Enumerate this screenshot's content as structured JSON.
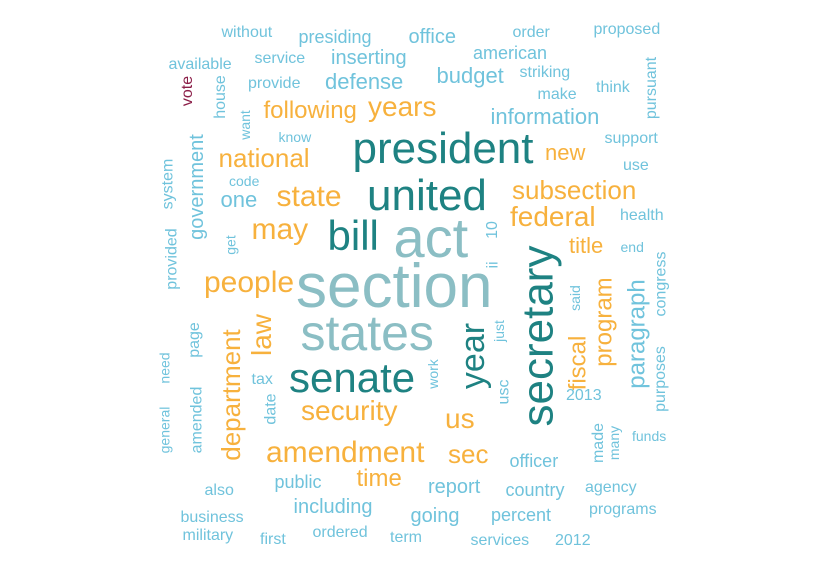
{
  "colors": {
    "light_blue": "#70C3DC",
    "gold": "#F7B13D",
    "teal_light": "#8BBEC4",
    "teal_dark": "#1E8282",
    "maroon": "#8B1E48"
  },
  "words": [
    {
      "text": "section",
      "color": "teal_light"
    },
    {
      "text": "act",
      "color": "teal_light"
    },
    {
      "text": "states",
      "color": "teal_light"
    },
    {
      "text": "president",
      "color": "teal_dark"
    },
    {
      "text": "united",
      "color": "teal_dark"
    },
    {
      "text": "senate",
      "color": "teal_dark"
    },
    {
      "text": "secretary",
      "color": "teal_dark"
    },
    {
      "text": "bill",
      "color": "teal_dark"
    },
    {
      "text": "year",
      "color": "teal_dark"
    },
    {
      "text": "amendment",
      "color": "gold"
    },
    {
      "text": "state",
      "color": "gold"
    },
    {
      "text": "may",
      "color": "gold"
    },
    {
      "text": "people",
      "color": "gold"
    },
    {
      "text": "federal",
      "color": "gold"
    },
    {
      "text": "subsection",
      "color": "gold"
    },
    {
      "text": "security",
      "color": "gold"
    },
    {
      "text": "national",
      "color": "gold"
    },
    {
      "text": "years",
      "color": "gold"
    },
    {
      "text": "following",
      "color": "gold"
    },
    {
      "text": "law",
      "color": "gold"
    },
    {
      "text": "department",
      "color": "gold"
    },
    {
      "text": "us",
      "color": "gold"
    },
    {
      "text": "sec",
      "color": "gold"
    },
    {
      "text": "time",
      "color": "gold"
    },
    {
      "text": "fiscal",
      "color": "gold"
    },
    {
      "text": "program",
      "color": "gold"
    },
    {
      "text": "paragraph",
      "color": "light_blue"
    },
    {
      "text": "title",
      "color": "gold"
    },
    {
      "text": "new",
      "color": "gold"
    },
    {
      "text": "budget",
      "color": "light_blue"
    },
    {
      "text": "information",
      "color": "light_blue"
    },
    {
      "text": "one",
      "color": "light_blue"
    },
    {
      "text": "government",
      "color": "light_blue"
    },
    {
      "text": "defense",
      "color": "light_blue"
    },
    {
      "text": "inserting",
      "color": "light_blue"
    },
    {
      "text": "american",
      "color": "light_blue"
    },
    {
      "text": "office",
      "color": "light_blue"
    },
    {
      "text": "presiding",
      "color": "light_blue"
    },
    {
      "text": "without",
      "color": "light_blue"
    },
    {
      "text": "order",
      "color": "light_blue"
    },
    {
      "text": "proposed",
      "color": "light_blue"
    },
    {
      "text": "available",
      "color": "light_blue"
    },
    {
      "text": "service",
      "color": "light_blue"
    },
    {
      "text": "provide",
      "color": "light_blue"
    },
    {
      "text": "house",
      "color": "light_blue"
    },
    {
      "text": "vote",
      "color": "maroon"
    },
    {
      "text": "want",
      "color": "light_blue"
    },
    {
      "text": "know",
      "color": "light_blue"
    },
    {
      "text": "striking",
      "color": "light_blue"
    },
    {
      "text": "make",
      "color": "light_blue"
    },
    {
      "text": "think",
      "color": "light_blue"
    },
    {
      "text": "pursuant",
      "color": "light_blue"
    },
    {
      "text": "support",
      "color": "light_blue"
    },
    {
      "text": "use",
      "color": "light_blue"
    },
    {
      "text": "health",
      "color": "light_blue"
    },
    {
      "text": "code",
      "color": "light_blue"
    },
    {
      "text": "system",
      "color": "light_blue"
    },
    {
      "text": "provided",
      "color": "light_blue"
    },
    {
      "text": "get",
      "color": "light_blue"
    },
    {
      "text": "ii",
      "color": "light_blue"
    },
    {
      "text": "10",
      "color": "light_blue"
    },
    {
      "text": "end",
      "color": "light_blue"
    },
    {
      "text": "congress",
      "color": "light_blue"
    },
    {
      "text": "purposes",
      "color": "light_blue"
    },
    {
      "text": "said",
      "color": "light_blue"
    },
    {
      "text": "just",
      "color": "light_blue"
    },
    {
      "text": "page",
      "color": "light_blue"
    },
    {
      "text": "need",
      "color": "light_blue"
    },
    {
      "text": "general",
      "color": "light_blue"
    },
    {
      "text": "amended",
      "color": "light_blue"
    },
    {
      "text": "tax",
      "color": "light_blue"
    },
    {
      "text": "date",
      "color": "light_blue"
    },
    {
      "text": "work",
      "color": "light_blue"
    },
    {
      "text": "usc",
      "color": "light_blue"
    },
    {
      "text": "2013",
      "color": "light_blue"
    },
    {
      "text": "made",
      "color": "light_blue"
    },
    {
      "text": "many",
      "color": "light_blue"
    },
    {
      "text": "funds",
      "color": "light_blue"
    },
    {
      "text": "officer",
      "color": "light_blue"
    },
    {
      "text": "report",
      "color": "light_blue"
    },
    {
      "text": "country",
      "color": "light_blue"
    },
    {
      "text": "agency",
      "color": "light_blue"
    },
    {
      "text": "public",
      "color": "light_blue"
    },
    {
      "text": "including",
      "color": "light_blue"
    },
    {
      "text": "going",
      "color": "light_blue"
    },
    {
      "text": "percent",
      "color": "light_blue"
    },
    {
      "text": "programs",
      "color": "light_blue"
    },
    {
      "text": "also",
      "color": "light_blue"
    },
    {
      "text": "business",
      "color": "light_blue"
    },
    {
      "text": "military",
      "color": "light_blue"
    },
    {
      "text": "first",
      "color": "light_blue"
    },
    {
      "text": "ordered",
      "color": "light_blue"
    },
    {
      "text": "term",
      "color": "light_blue"
    },
    {
      "text": "services",
      "color": "light_blue"
    },
    {
      "text": "2012",
      "color": "light_blue"
    }
  ]
}
